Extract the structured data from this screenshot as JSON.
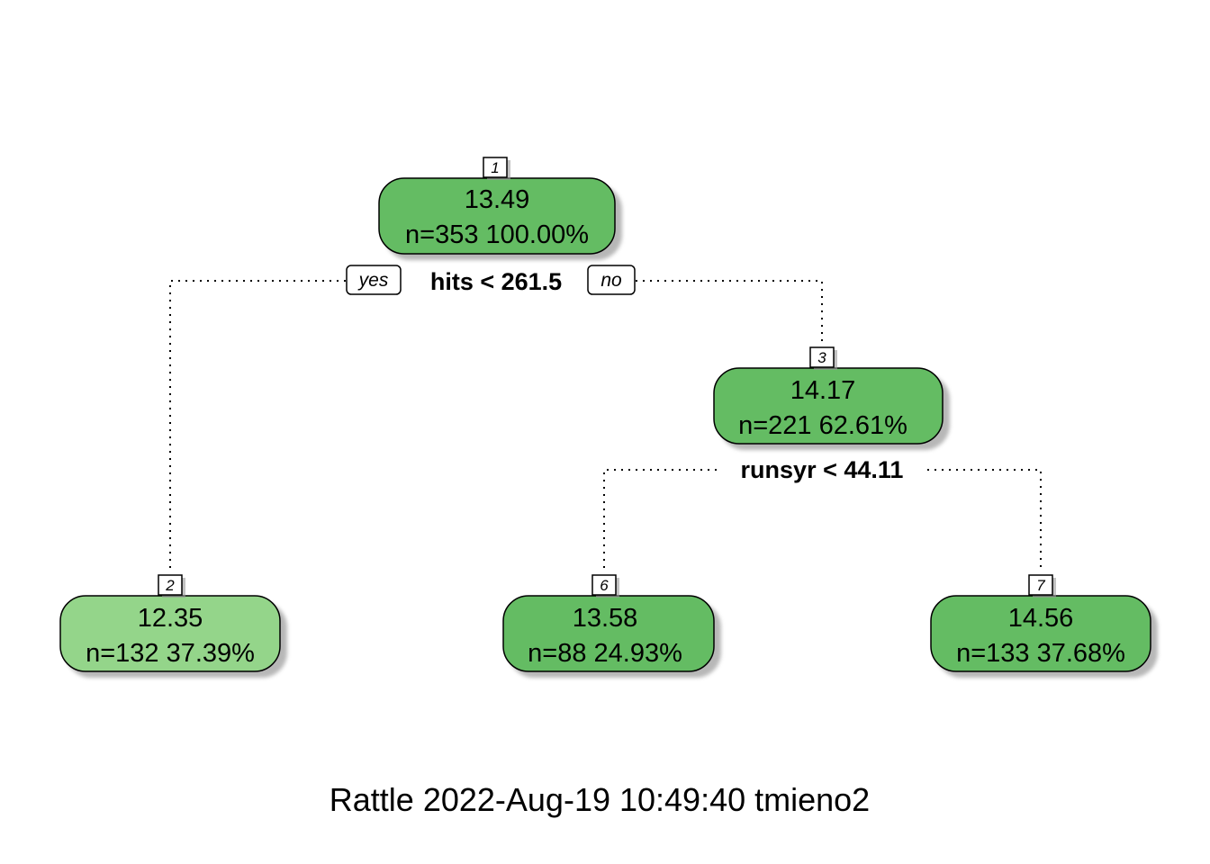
{
  "tree": {
    "nodes": [
      {
        "id": "1",
        "value": "13.49",
        "stats": "n=353  100.00%",
        "color": "#64BC63"
      },
      {
        "id": "2",
        "value": "12.35",
        "stats": "n=132  37.39%",
        "color": "#94D58A"
      },
      {
        "id": "3",
        "value": "14.17",
        "stats": "n=221  62.61%",
        "color": "#64BC63"
      },
      {
        "id": "6",
        "value": "13.58",
        "stats": "n=88  24.93%",
        "color": "#64BC63"
      },
      {
        "id": "7",
        "value": "14.56",
        "stats": "n=133  37.68%",
        "color": "#64BC63"
      }
    ],
    "splits": [
      {
        "node": "1",
        "label": "hits < 261.5",
        "yes": "yes",
        "no": "no"
      },
      {
        "node": "3",
        "label": "runsyr < 44.11"
      }
    ]
  },
  "caption": "Rattle 2022-Aug-19 10:49:40 tmieno2"
}
